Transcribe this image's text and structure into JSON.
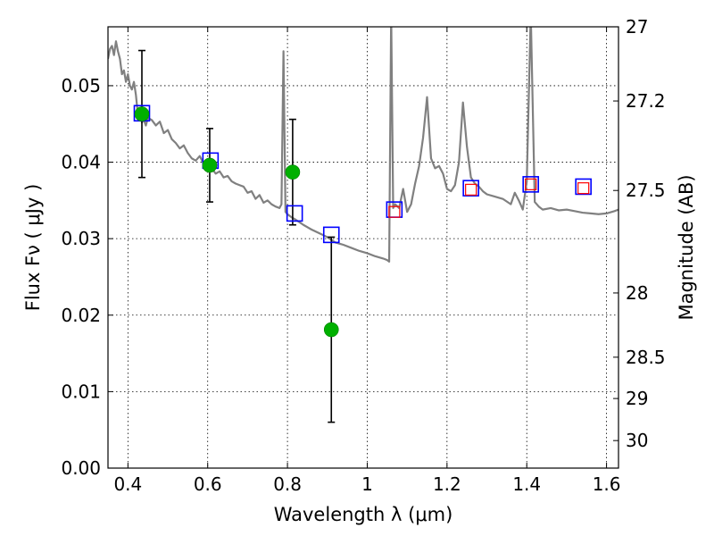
{
  "chart_data": {
    "type": "line",
    "title": "",
    "xlabel": "Wavelength  λ (μm)",
    "ylabel": "Flux  Fν  ( μJy )",
    "ylabel_right": "Magnitude (AB)",
    "xlim": [
      0.35,
      1.63
    ],
    "ylim": [
      0.0,
      0.0577
    ],
    "grid": true,
    "x_ticks": [
      0.4,
      0.6,
      0.8,
      1.0,
      1.2,
      1.4,
      1.6
    ],
    "x_tick_labels": [
      "0.4",
      "0.6",
      "0.8",
      "1",
      "1.2",
      "1.4",
      "1.6"
    ],
    "y_ticks": [
      0.0,
      0.01,
      0.02,
      0.03,
      0.04,
      0.05
    ],
    "y_tick_labels": [
      "0.00",
      "0.01",
      "0.02",
      "0.03",
      "0.04",
      "0.05"
    ],
    "right_ticks": [
      {
        "label": "27",
        "flux": 0.0577
      },
      {
        "label": "27.2",
        "flux": 0.048
      },
      {
        "label": "27.5",
        "flux": 0.0363
      },
      {
        "label": "28",
        "flux": 0.0229
      },
      {
        "label": "28.5",
        "flux": 0.0145
      },
      {
        "label": "29",
        "flux": 0.0091
      },
      {
        "label": "30",
        "flux": 0.0036
      }
    ],
    "colors": {
      "spectrum": "#808080",
      "observed": "#00b000",
      "model_band_blue": "#0000ff",
      "model_band_red": "#ff0000",
      "errorbar": "#000000",
      "grid": "#000000"
    },
    "series": [
      {
        "type": "line",
        "x": [
          0.35,
          0.355,
          0.36,
          0.365,
          0.37,
          0.375,
          0.38,
          0.385,
          0.39,
          0.395,
          0.4,
          0.405,
          0.41,
          0.415,
          0.42,
          0.425,
          0.43,
          0.435,
          0.44,
          0.445,
          0.45,
          0.46,
          0.47,
          0.48,
          0.49,
          0.5,
          0.51,
          0.52,
          0.53,
          0.54,
          0.55,
          0.56,
          0.57,
          0.58,
          0.59,
          0.6,
          0.61,
          0.62,
          0.63,
          0.64,
          0.65,
          0.66,
          0.67,
          0.68,
          0.69,
          0.7,
          0.71,
          0.72,
          0.73,
          0.74,
          0.75,
          0.76,
          0.77,
          0.78,
          0.785,
          0.79,
          0.795,
          0.8,
          0.81,
          0.82,
          0.84,
          0.86,
          0.88,
          0.9,
          0.92,
          0.94,
          0.96,
          0.98,
          1.0,
          1.02,
          1.04,
          1.05,
          1.055,
          1.06,
          1.065,
          1.07,
          1.08,
          1.09,
          1.1,
          1.11,
          1.12,
          1.13,
          1.14,
          1.15,
          1.16,
          1.17,
          1.18,
          1.19,
          1.2,
          1.21,
          1.22,
          1.23,
          1.24,
          1.25,
          1.26,
          1.27,
          1.28,
          1.29,
          1.3,
          1.32,
          1.34,
          1.36,
          1.37,
          1.38,
          1.39,
          1.4,
          1.41,
          1.42,
          1.43,
          1.44,
          1.46,
          1.48,
          1.5,
          1.52,
          1.54,
          1.56,
          1.58,
          1.6,
          1.62,
          1.63
        ],
        "y": [
          0.0535,
          0.0548,
          0.0552,
          0.054,
          0.0558,
          0.0545,
          0.0535,
          0.0515,
          0.052,
          0.0505,
          0.0515,
          0.05,
          0.0495,
          0.0505,
          0.0488,
          0.0462,
          0.0468,
          0.0452,
          0.0455,
          0.0448,
          0.0458,
          0.0455,
          0.0448,
          0.0453,
          0.0438,
          0.0442,
          0.043,
          0.0425,
          0.0418,
          0.0422,
          0.0412,
          0.0405,
          0.0402,
          0.0408,
          0.0398,
          0.0395,
          0.0392,
          0.0385,
          0.0388,
          0.038,
          0.0382,
          0.0375,
          0.0372,
          0.037,
          0.0368,
          0.036,
          0.0362,
          0.0352,
          0.0357,
          0.0347,
          0.035,
          0.0345,
          0.0342,
          0.034,
          0.0345,
          0.0545,
          0.0335,
          0.0332,
          0.0328,
          0.0325,
          0.0318,
          0.0312,
          0.0307,
          0.0302,
          0.0295,
          0.0292,
          0.0288,
          0.0284,
          0.0281,
          0.0277,
          0.0274,
          0.0272,
          0.027,
          0.0595,
          0.034,
          0.0345,
          0.034,
          0.0365,
          0.0335,
          0.0345,
          0.0372,
          0.0395,
          0.0432,
          0.0485,
          0.0405,
          0.0392,
          0.0395,
          0.0385,
          0.0365,
          0.0362,
          0.037,
          0.04,
          0.0478,
          0.042,
          0.038,
          0.0372,
          0.0368,
          0.0362,
          0.0358,
          0.0355,
          0.0352,
          0.0345,
          0.036,
          0.035,
          0.0338,
          0.0375,
          0.0595,
          0.0348,
          0.0342,
          0.0338,
          0.034,
          0.0337,
          0.0338,
          0.0336,
          0.0334,
          0.0333,
          0.0332,
          0.0333,
          0.0336,
          0.0338
        ]
      },
      {
        "type": "scatter",
        "x": [
          0.435,
          0.605,
          0.813,
          0.91
        ],
        "y": [
          0.0463,
          0.0396,
          0.0387,
          0.0181
        ],
        "yerr": [
          0.0083,
          0.0048,
          0.0069,
          0.0121
        ]
      },
      {
        "type": "scatter",
        "x": [
          0.435,
          0.607,
          0.818,
          0.91,
          1.068,
          1.26,
          1.41,
          1.542
        ],
        "y": [
          0.0464,
          0.0402,
          0.0333,
          0.0305,
          0.0338,
          0.0366,
          0.0371,
          0.0368
        ]
      },
      {
        "type": "scatter",
        "x": [
          1.068,
          1.26,
          1.41,
          1.542
        ],
        "y": [
          0.0335,
          0.0364,
          0.0371,
          0.0366
        ]
      }
    ]
  }
}
